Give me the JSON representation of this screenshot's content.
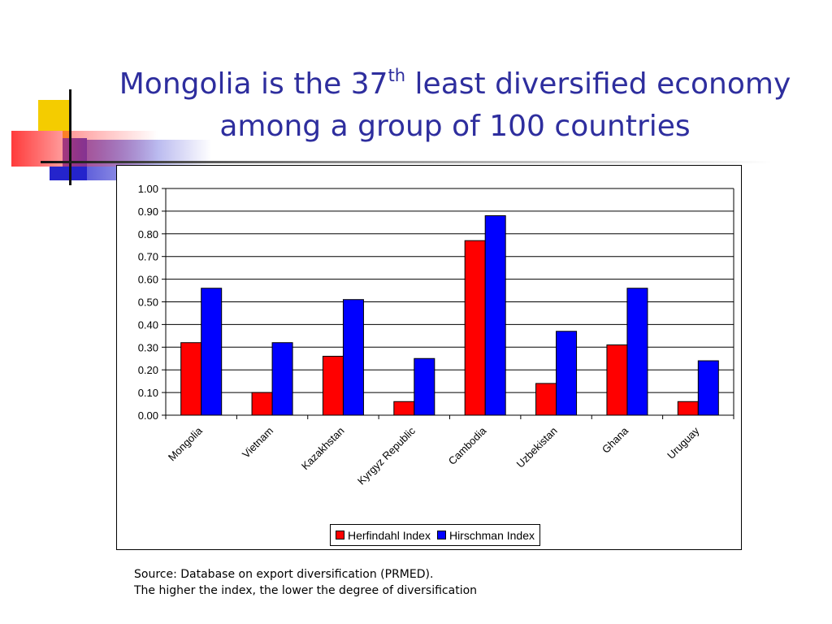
{
  "slide": {
    "title_part1": "Mongolia is the 37",
    "title_sup": "th",
    "title_part2": " least diversified economy among a group of 100 countries",
    "source_line1": "Source: Database on export diversification (PRMED).",
    "source_line2": "The higher the index, the lower the degree of diversification",
    "title_color": "#2e2e9e"
  },
  "chart_data": {
    "type": "bar",
    "categories": [
      "Mongolia",
      "Vietnam",
      "Kazakhstan",
      "Kyrgyz Republic",
      "Cambodia",
      "Uzbekistan",
      "Ghana",
      "Uruguay"
    ],
    "series": [
      {
        "name": "Herfindahl Index",
        "color": "#ff0000",
        "values": [
          0.32,
          0.1,
          0.26,
          0.06,
          0.77,
          0.14,
          0.31,
          0.06
        ]
      },
      {
        "name": "Hirschman Index",
        "color": "#0000ff",
        "values": [
          0.56,
          0.32,
          0.51,
          0.25,
          0.88,
          0.37,
          0.56,
          0.24
        ]
      }
    ],
    "ylim": [
      0,
      1
    ],
    "yticks": [
      "0.00",
      "0.10",
      "0.20",
      "0.30",
      "0.40",
      "0.50",
      "0.60",
      "0.70",
      "0.80",
      "0.90",
      "1.00"
    ],
    "grid": true,
    "legend_position": "bottom",
    "title": "",
    "xlabel": "",
    "ylabel": ""
  }
}
